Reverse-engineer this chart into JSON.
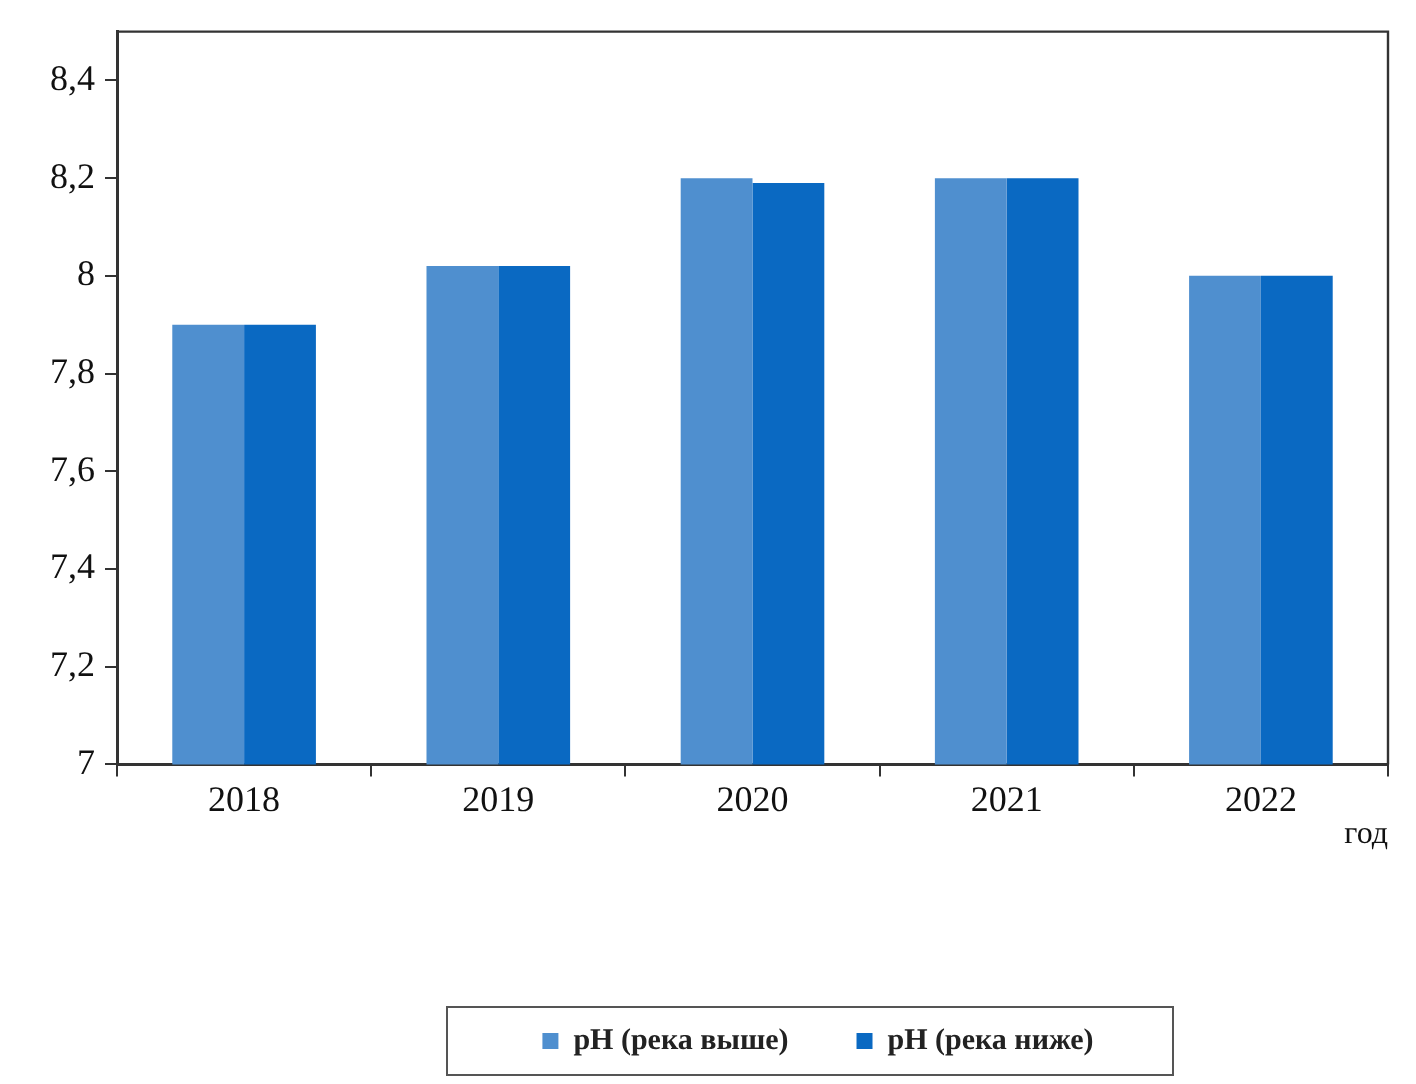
{
  "chart_data": {
    "type": "bar",
    "categories": [
      "2018",
      "2019",
      "2020",
      "2021",
      "2022"
    ],
    "series": [
      {
        "name": "pH (река выше)",
        "color": "#4f8fcf",
        "values": [
          7.9,
          8.02,
          8.2,
          8.2,
          8.0
        ]
      },
      {
        "name": "pH (река ниже)",
        "color": "#0a69c2",
        "values": [
          7.9,
          8.02,
          8.19,
          8.2,
          8.0
        ]
      }
    ],
    "xlabel": "год",
    "ylim": [
      7,
      8.5
    ],
    "yticks": [
      7,
      {
        "value": 7.2,
        "label": "7,2"
      },
      {
        "value": 7.4,
        "label": "7,4"
      },
      {
        "value": 7.6,
        "label": "7,6"
      },
      {
        "value": 7.8,
        "label": "7,8"
      },
      8,
      {
        "value": 8.2,
        "label": "8,2"
      },
      {
        "value": 8.4,
        "label": "8,4"
      }
    ],
    "grid": false,
    "legend": "bottom"
  }
}
